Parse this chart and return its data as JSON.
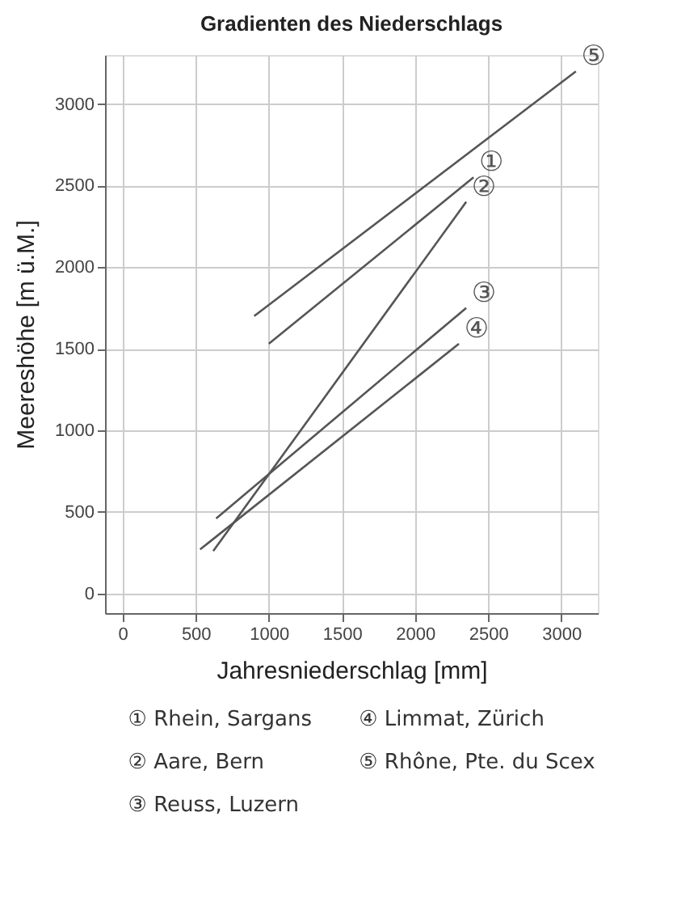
{
  "chart_data": {
    "type": "line",
    "title": "Gradienten des Niederschlags",
    "xlabel": "Jahresniederschlag [mm]",
    "ylabel": "Meereshöhe [m ü.M.]",
    "series": [
      {
        "name": "①",
        "color": "#555555",
        "x": [
          1000,
          2400
        ],
        "values": [
          1530,
          2550
        ]
      },
      {
        "name": "②",
        "color": "#555555",
        "x": [
          620,
          2350
        ],
        "values": [
          260,
          2400
        ]
      },
      {
        "name": "③",
        "color": "#555555",
        "x": [
          640,
          2350
        ],
        "values": [
          460,
          1750
        ]
      },
      {
        "name": "④",
        "color": "#555555",
        "x": [
          530,
          2300
        ],
        "values": [
          270,
          1530
        ]
      },
      {
        "name": "⑤",
        "color": "#555555",
        "x": [
          900,
          3100
        ],
        "values": [
          1700,
          3200
        ]
      }
    ],
    "annotations": [
      "① Rhein, Sargans",
      "② Aare, Bern",
      "③ Reuss, Luzern",
      "④ Limmat, Zürich",
      "⑤ Rhône, Pte. du Scex"
    ],
    "xlim": [
      -120,
      3250
    ],
    "ylim": [
      -120,
      3300
    ],
    "xticks": [
      0,
      500,
      1000,
      1500,
      2000,
      2500,
      3000
    ],
    "yticks": [
      0,
      500,
      1000,
      1500,
      2000,
      2500,
      3000
    ],
    "grid": true,
    "line_style": "solid",
    "marker": "none"
  }
}
